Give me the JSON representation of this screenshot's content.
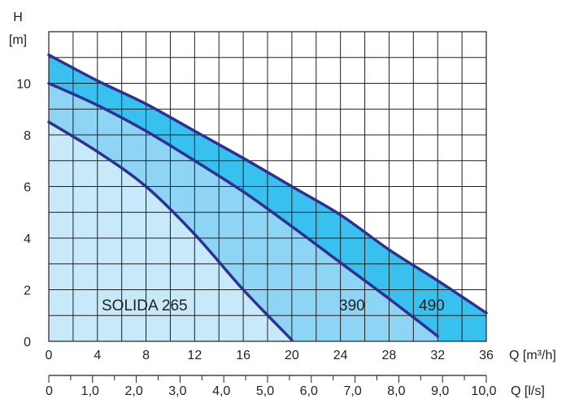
{
  "chart_data": {
    "type": "area",
    "y_axis": {
      "label_line1": "H",
      "label_line2": "[m]",
      "ticks": [
        0,
        2,
        4,
        6,
        8,
        10
      ],
      "ylim": [
        0,
        12
      ]
    },
    "x_axis_primary": {
      "label": "Q [m³/h]",
      "ticks": [
        0,
        4,
        8,
        12,
        16,
        20,
        24,
        28,
        32,
        36
      ],
      "xlim": [
        0,
        36
      ]
    },
    "x_axis_secondary": {
      "label": "Q [l/s]",
      "ticks": [
        "0",
        "1,0",
        "2,0",
        "3,0",
        "4,0",
        "5,0",
        "6,0",
        "7,0",
        "8,0",
        "9,0",
        "10,0"
      ],
      "xlim": [
        0,
        10
      ]
    },
    "grid": true,
    "series": [
      {
        "label": "SOLIDA 265",
        "color": "#c8e9f9",
        "x": [
          0,
          4,
          8,
          12,
          16,
          20
        ],
        "y": [
          8.5,
          7.35,
          6.0,
          4.15,
          2.0,
          0.05
        ]
      },
      {
        "label": "390",
        "color": "#8ed4f4",
        "x": [
          0,
          4,
          8,
          12,
          16,
          20,
          24,
          28,
          32
        ],
        "y": [
          10.0,
          9.15,
          8.15,
          7.0,
          5.8,
          4.45,
          3.05,
          1.65,
          0.2
        ]
      },
      {
        "label": "490",
        "color": "#38c0ee",
        "x": [
          0,
          4,
          8,
          12,
          16,
          20,
          24,
          28,
          32,
          36
        ],
        "y": [
          11.1,
          10.1,
          9.2,
          8.15,
          7.1,
          6.0,
          4.9,
          3.55,
          2.35,
          1.1
        ]
      }
    ]
  }
}
